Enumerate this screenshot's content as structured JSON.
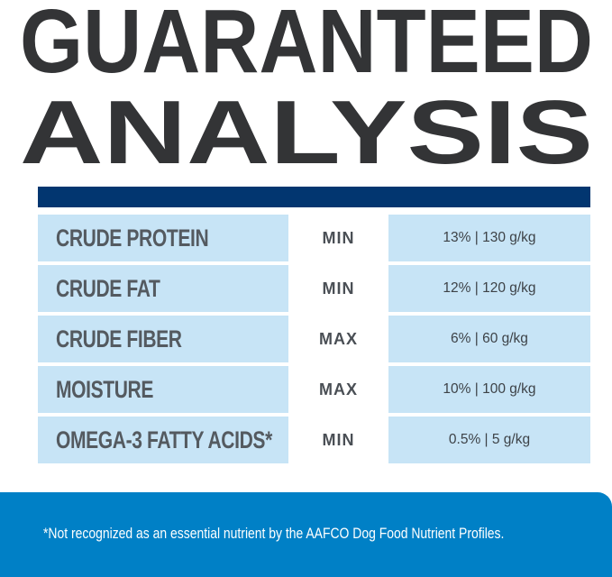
{
  "title": {
    "line1": "GUARANTEED",
    "line2": "ANALYSIS"
  },
  "colors": {
    "header_bar": "#023670",
    "cell": "#c7e4f6",
    "footer": "#0080c6",
    "title": "#333436"
  },
  "rows": [
    {
      "nutrient": "CRUDE PROTEIN",
      "qualifier": "MIN",
      "value": "13% | 130 g/kg"
    },
    {
      "nutrient": "CRUDE FAT",
      "qualifier": "MIN",
      "value": "12% | 120 g/kg"
    },
    {
      "nutrient": "CRUDE FIBER",
      "qualifier": "MAX",
      "value": "6% | 60 g/kg"
    },
    {
      "nutrient": "MOISTURE",
      "qualifier": "MAX",
      "value": "10% | 100 g/kg"
    },
    {
      "nutrient": "OMEGA-3 FATTY ACIDS*",
      "qualifier": "MIN",
      "value": "0.5% | 5 g/kg"
    }
  ],
  "footnote": "*Not recognized as an essential nutrient by the AAFCO Dog Food Nutrient Profiles."
}
